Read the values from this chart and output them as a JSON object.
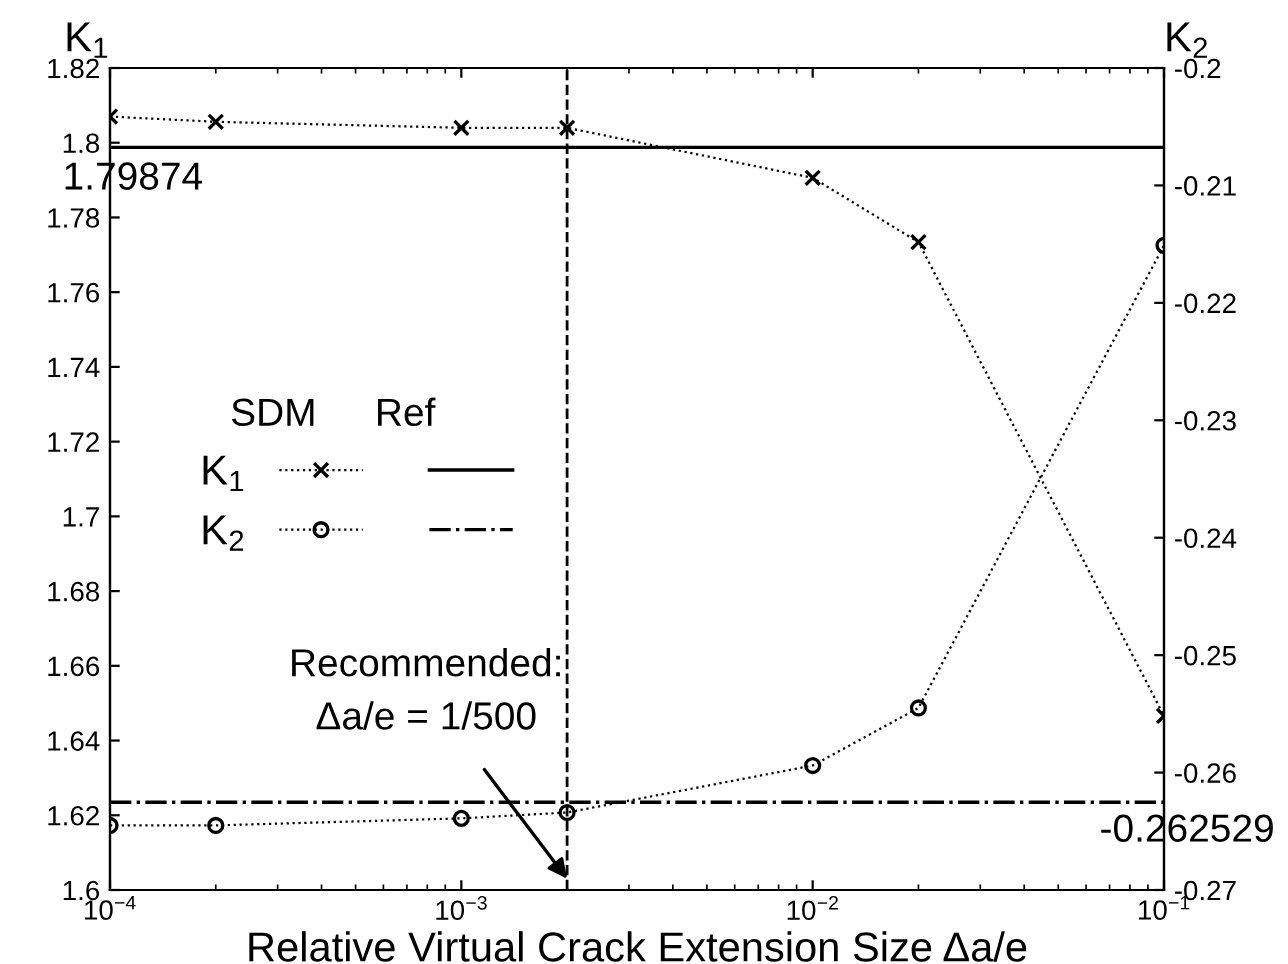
{
  "chart_data": {
    "type": "line",
    "xlabel": "Relative Virtual Crack Extension Size Δa/e",
    "ylabel": "K$_{1}$",
    "y2label": "K$_{2}$",
    "log": "x",
    "grid": false,
    "legend": "left",
    "line_style": "dotted",
    "x": [
      0.0001,
      0.0002,
      0.001,
      0.002,
      0.01,
      0.02,
      0.1
    ],
    "series": [
      {
        "name": "K$_{1}$",
        "color": "#000000",
        "marker": "cross",
        "values": [
          1.807,
          1.8056,
          1.804,
          1.804,
          1.7906,
          1.7734,
          1.6466
        ]
      },
      {
        "name": "K$_{2}$",
        "color": "#000000",
        "marker": "circle",
        "axis": "y2",
        "values": [
          -0.2645,
          -0.2645,
          -0.2639,
          -0.2634,
          -0.2594,
          -0.2545,
          -0.2151
        ]
      }
    ],
    "xlim": [
      0.0001,
      0.1
    ],
    "xticks": [
      {
        "value": 0.0001,
        "label": "10$^{−4}$"
      },
      {
        "value": 0.001,
        "label": "10$^{−3}$"
      },
      {
        "value": 0.01,
        "label": "10$^{−2}$"
      },
      {
        "value": 0.1,
        "label": "10$^{−1}$"
      }
    ],
    "ylim": [
      1.6,
      1.82
    ],
    "yticks": [
      {
        "value": 1.6,
        "label": "1.6"
      },
      1.62,
      1.64,
      1.66,
      1.68,
      {
        "value": 1.7,
        "label": "1.7"
      },
      1.72,
      1.74,
      1.76,
      1.78,
      {
        "value": 1.8,
        "label": "1.8"
      },
      1.82
    ],
    "y2lim": [
      -0.27,
      -0.2
    ],
    "y2ticks": [
      {
        "value": -0.27,
        "label": "-0.27"
      },
      {
        "value": -0.26,
        "label": "-0.26"
      },
      {
        "value": -0.25,
        "label": "-0.25"
      },
      {
        "value": -0.24,
        "label": "-0.24"
      },
      {
        "value": -0.23,
        "label": "-0.23"
      },
      {
        "value": -0.22,
        "label": "-0.22"
      },
      {
        "value": -0.21,
        "label": "-0.21"
      },
      {
        "value": -0.2,
        "label": "-0.2"
      }
    ],
    "ref_lines": [
      {
        "axis": "y",
        "value": 1.79874,
        "label": "1.79874",
        "color": "#000000",
        "line_style": "solid"
      },
      {
        "axis": "y2",
        "value": -0.262529,
        "label": "-0.262529",
        "color": "#000000",
        "line_style": "dashdot"
      },
      {
        "axis": "x",
        "value": 0.002,
        "color": "#000000",
        "line_style": "dashed"
      }
    ],
    "annotations": [
      {
        "text": "Recommended:\nΔa/e = 1/500",
        "x": 0.002,
        "y": 1.603
      },
      "SDM",
      "Ref"
    ]
  }
}
